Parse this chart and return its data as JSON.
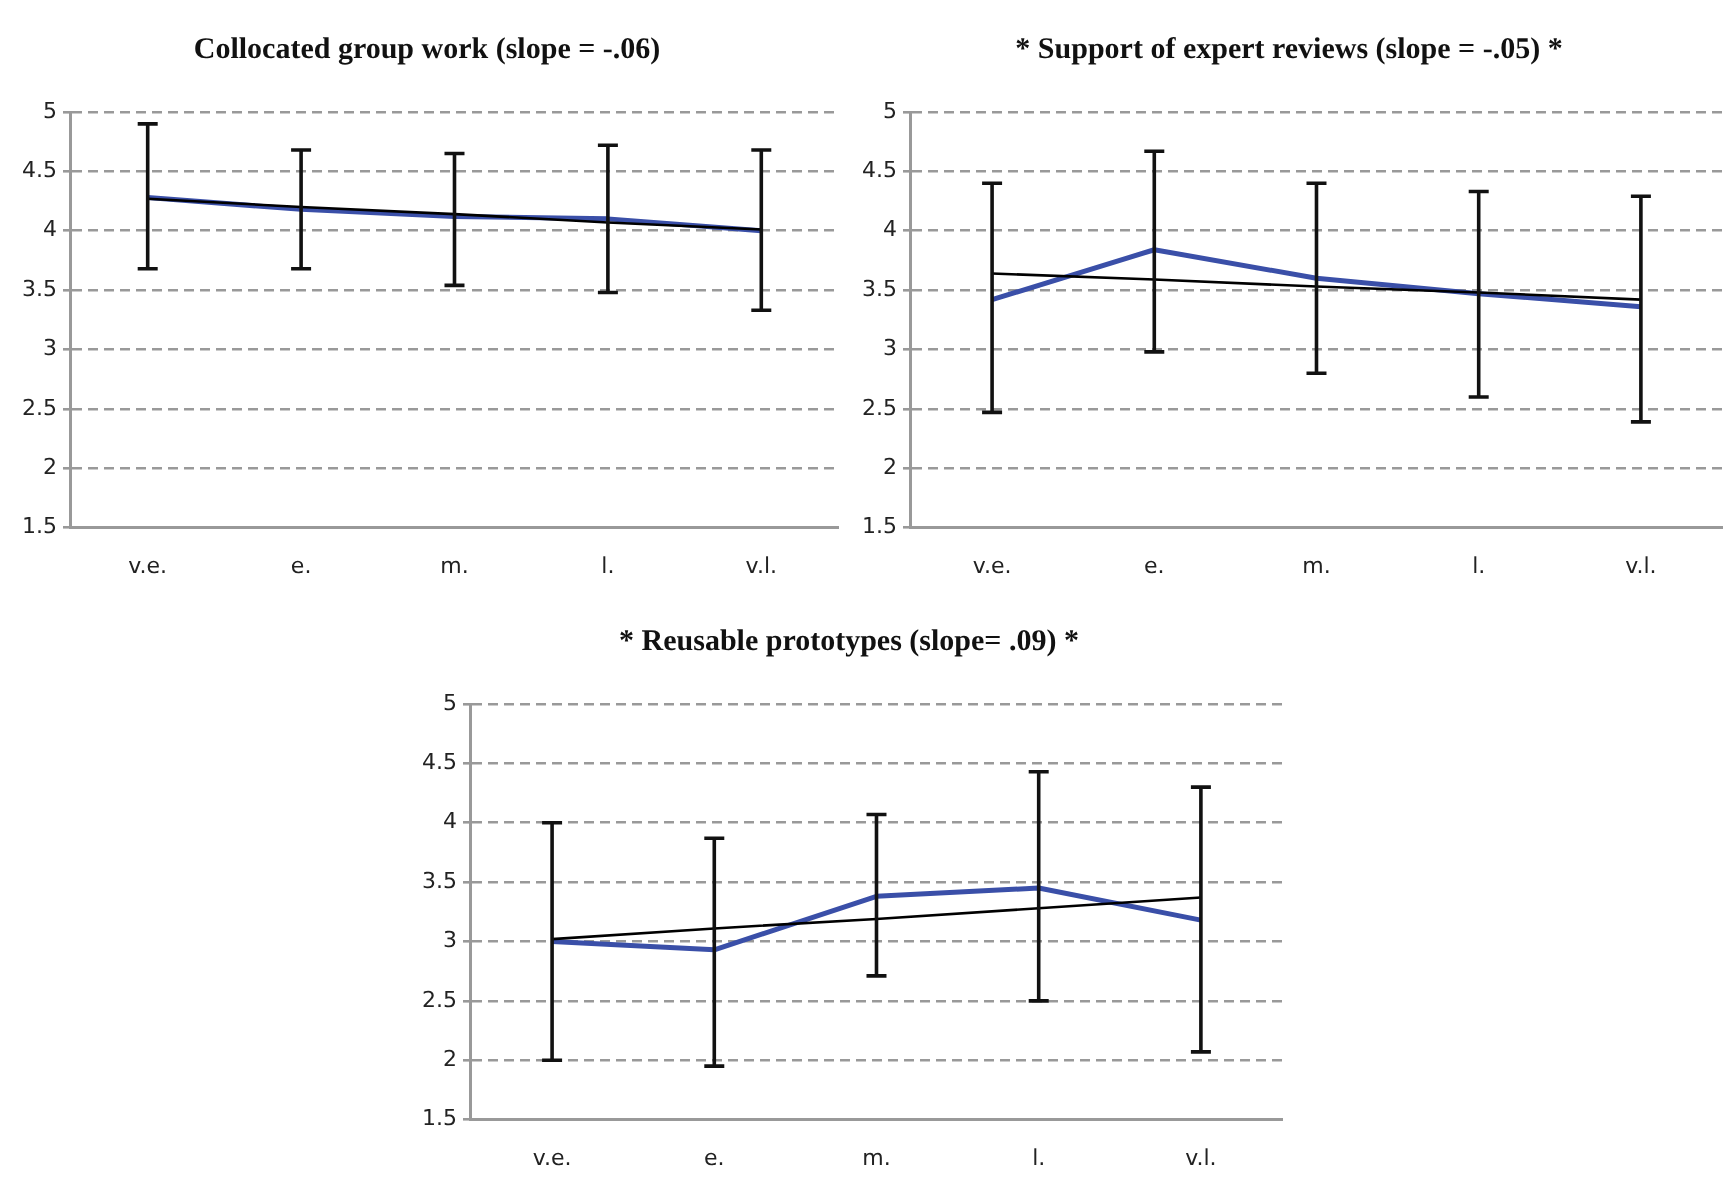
{
  "chart_data": [
    {
      "type": "line",
      "title": "Collocated group work (slope = -.06)",
      "categories": [
        "v.e.",
        "e.",
        "m.",
        "l.",
        "v.l."
      ],
      "ylim": [
        1.5,
        5
      ],
      "yticks": [
        1.5,
        2,
        2.5,
        3,
        3.5,
        4,
        4.5,
        5
      ],
      "grid": "y",
      "legend": false,
      "series": [
        {
          "color": "#3a4fa8",
          "values": [
            4.28,
            4.18,
            4.12,
            4.1,
            4.0
          ],
          "errors": [
            [
              3.68,
              4.9
            ],
            [
              3.68,
              4.68
            ],
            [
              3.54,
              4.65
            ],
            [
              3.48,
              4.72
            ],
            [
              3.33,
              4.68
            ]
          ]
        },
        {
          "color": "#000000",
          "values": [
            4.27,
            4.2,
            4.14,
            4.07,
            4.01
          ]
        }
      ]
    },
    {
      "type": "line",
      "title": "* Support of expert reviews (slope = -.05) *",
      "categories": [
        "v.e.",
        "e.",
        "m.",
        "l.",
        "v.l."
      ],
      "ylim": [
        1.5,
        5
      ],
      "yticks": [
        1.5,
        2,
        2.5,
        3,
        3.5,
        4,
        4.5,
        5
      ],
      "grid": "y",
      "legend": false,
      "series": [
        {
          "color": "#3a4fa8",
          "values": [
            3.42,
            3.84,
            3.6,
            3.47,
            3.36
          ],
          "errors": [
            [
              2.47,
              4.4
            ],
            [
              2.98,
              4.67
            ],
            [
              2.8,
              4.4
            ],
            [
              2.6,
              4.33
            ],
            [
              2.39,
              4.29
            ]
          ]
        },
        {
          "color": "#000000",
          "values": [
            3.64,
            3.59,
            3.53,
            3.48,
            3.42
          ]
        }
      ]
    },
    {
      "type": "line",
      "title": "* Reusable prototypes (slope= .09) *",
      "categories": [
        "v.e.",
        "e.",
        "m.",
        "l.",
        "v.l."
      ],
      "ylim": [
        1.5,
        5
      ],
      "yticks": [
        1.5,
        2,
        2.5,
        3,
        3.5,
        4,
        4.5,
        5
      ],
      "grid": "y",
      "legend": false,
      "series": [
        {
          "color": "#3a4fa8",
          "values": [
            3.0,
            2.93,
            3.38,
            3.45,
            3.18
          ],
          "errors": [
            [
              2.0,
              4.0
            ],
            [
              1.95,
              3.87
            ],
            [
              2.71,
              4.07
            ],
            [
              2.5,
              4.43
            ],
            [
              2.07,
              4.3
            ]
          ]
        },
        {
          "color": "#000000",
          "values": [
            3.02,
            3.11,
            3.19,
            3.28,
            3.37
          ]
        }
      ]
    }
  ]
}
